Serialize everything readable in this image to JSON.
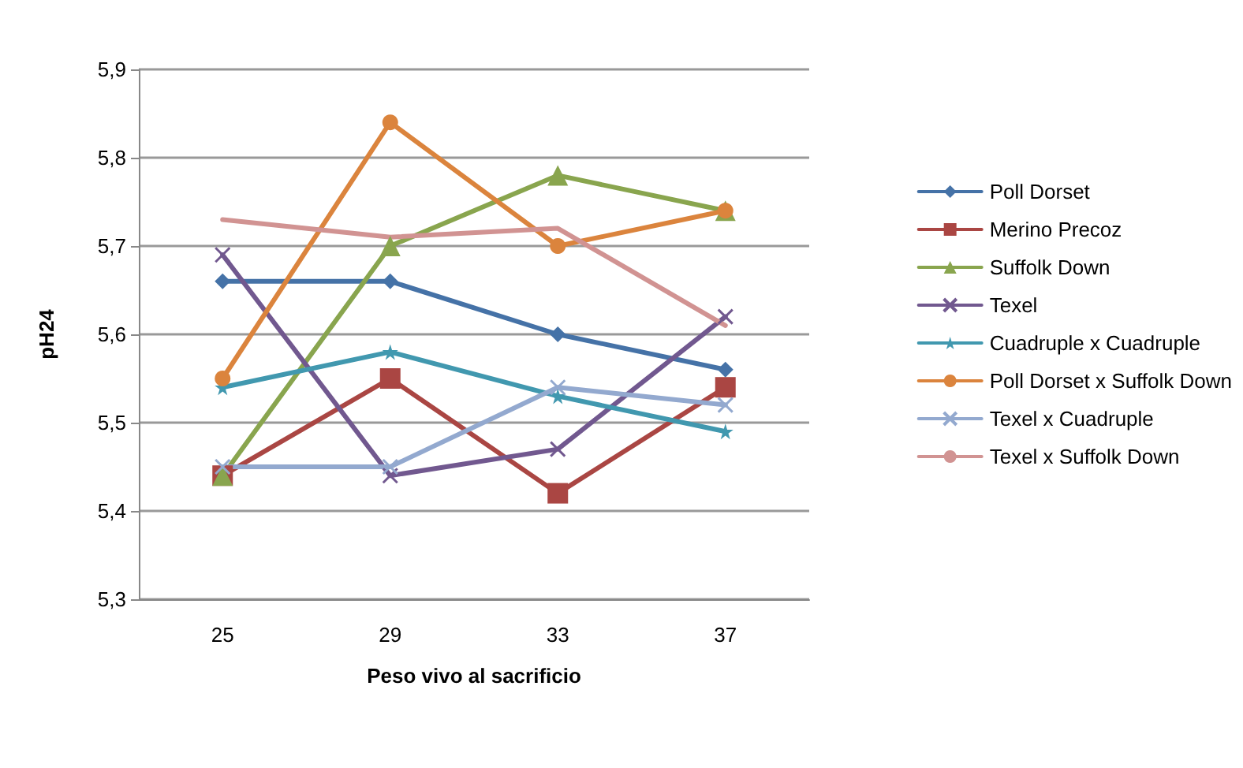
{
  "chart_data": {
    "type": "line",
    "xlabel": "Peso vivo al sacrificio",
    "ylabel": "pH24",
    "categories": [
      "25",
      "29",
      "33",
      "37"
    ],
    "ylim": [
      5.3,
      5.9
    ],
    "yticks": [
      {
        "value": 5.3,
        "label": "5,3"
      },
      {
        "value": 5.4,
        "label": "5,4"
      },
      {
        "value": 5.5,
        "label": "5,5"
      },
      {
        "value": 5.6,
        "label": "5,6"
      },
      {
        "value": 5.7,
        "label": "5,7"
      },
      {
        "value": 5.8,
        "label": "5,8"
      },
      {
        "value": 5.9,
        "label": "5,9"
      }
    ],
    "grid": "y",
    "legend": "right",
    "line_style": "solid",
    "series": [
      {
        "name": "Poll Dorset",
        "color": "#4572a7",
        "marker": "diamond",
        "values": [
          5.66,
          5.66,
          5.6,
          5.56
        ]
      },
      {
        "name": "Merino Precoz",
        "color": "#aa4643",
        "marker": "square",
        "values": [
          5.44,
          5.55,
          5.42,
          5.54
        ]
      },
      {
        "name": "Suffolk Down",
        "color": "#89a54e",
        "marker": "triangle",
        "values": [
          5.44,
          5.7,
          5.78,
          5.74
        ]
      },
      {
        "name": "Texel",
        "color": "#71588f",
        "marker": "cross",
        "values": [
          5.69,
          5.44,
          5.47,
          5.62
        ]
      },
      {
        "name": "Cuadruple x Cuadruple",
        "color": "#4198af",
        "marker": "star",
        "values": [
          5.54,
          5.58,
          5.53,
          5.49
        ]
      },
      {
        "name": "Poll Dorset x Suffolk Down",
        "color": "#db843d",
        "marker": "circle",
        "values": [
          5.55,
          5.84,
          5.7,
          5.74
        ]
      },
      {
        "name": "Texel x Cuadruple",
        "color": "#93a9cf",
        "marker": "cross",
        "values": [
          5.45,
          5.45,
          5.54,
          5.52
        ]
      },
      {
        "name": "Texel x Suffolk Down",
        "color": "#d19392",
        "marker": "none",
        "values": [
          5.73,
          5.71,
          5.72,
          5.61
        ]
      }
    ]
  }
}
